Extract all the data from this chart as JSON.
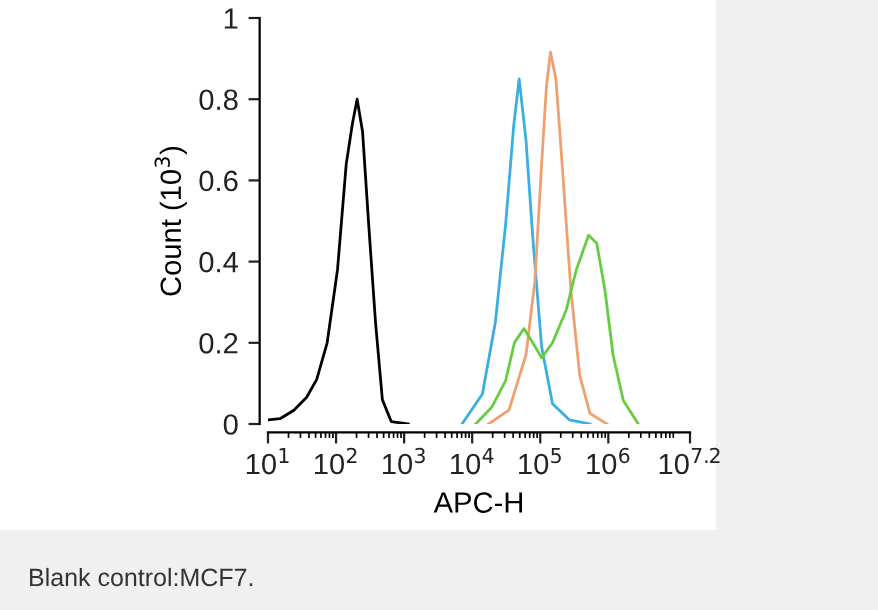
{
  "chart_data": {
    "type": "line",
    "xlabel": "APC-H",
    "ylabel": "Count (10$^{3}$)",
    "log": "x",
    "grid": false,
    "legend": false,
    "marker": "none",
    "line_style": "solid",
    "xlim": [
      10,
      15848932
    ],
    "ylim": [
      0,
      1
    ],
    "xticks": [
      {
        "value": 10,
        "label": "10$^{1}$"
      },
      {
        "value": 100,
        "label": "10$^{2}$"
      },
      {
        "value": 1000,
        "label": "10$^{3}$"
      },
      {
        "value": 10000,
        "label": "10$^{4}$"
      },
      {
        "value": 100000,
        "label": "10$^{5}$"
      },
      {
        "value": 1000000,
        "label": "10$^{6}$"
      },
      {
        "value": 15848932,
        "label": "10$^{7.2}$"
      }
    ],
    "yticks": [
      0,
      0.2,
      0.4,
      0.6,
      0.8,
      1
    ],
    "series": [
      {
        "color": "#000000",
        "x": [
          10,
          15,
          24,
          37,
          52,
          74,
          105,
          141,
          174,
          204,
          245,
          302,
          380,
          479,
          646,
          1148
        ],
        "values": [
          0.01,
          0.013,
          0.034,
          0.066,
          0.11,
          0.2,
          0.38,
          0.64,
          0.74,
          0.8,
          0.72,
          0.49,
          0.25,
          0.06,
          0.006,
          0
        ]
      },
      {
        "color": "#3aaee0",
        "x": [
          7079,
          14125,
          21878,
          30903,
          40738,
          48978,
          61660,
          77625,
          104713,
          151356,
          269153,
          537032
        ],
        "values": [
          0,
          0.074,
          0.25,
          0.49,
          0.735,
          0.85,
          0.7,
          0.46,
          0.19,
          0.05,
          0.01,
          0
        ]
      },
      {
        "color": "#f0a070",
        "x": [
          17378,
          34674,
          61660,
          83176,
          104713,
          123027,
          141254,
          169824,
          213796,
          281838,
          380189,
          537032,
          954993
        ],
        "values": [
          0,
          0.034,
          0.17,
          0.35,
          0.64,
          0.83,
          0.916,
          0.85,
          0.62,
          0.33,
          0.12,
          0.026,
          0
        ]
      },
      {
        "color": "#66cc44",
        "x": [
          11220,
          19498,
          30903,
          41687,
          57544,
          77625,
          104713,
          151356,
          239883,
          338844,
          512861,
          676083,
          891251,
          1174898,
          1659587,
          2754229
        ],
        "values": [
          0,
          0.042,
          0.106,
          0.2,
          0.235,
          0.2,
          0.163,
          0.2,
          0.28,
          0.38,
          0.465,
          0.445,
          0.33,
          0.17,
          0.058,
          0
        ]
      }
    ],
    "annotations": [
      "Blank control:MCF7."
    ]
  }
}
